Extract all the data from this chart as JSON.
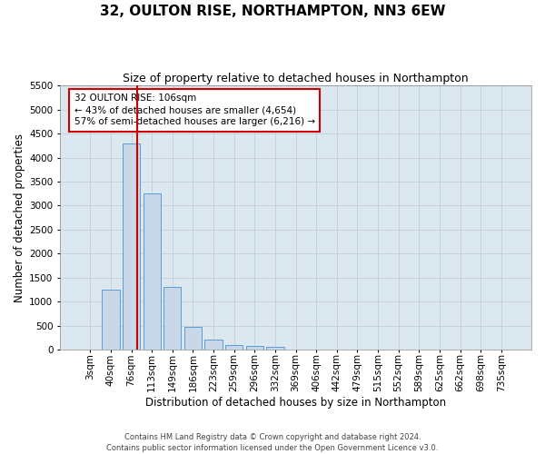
{
  "title": "32, OULTON RISE, NORTHAMPTON, NN3 6EW",
  "subtitle": "Size of property relative to detached houses in Northampton",
  "xlabel": "Distribution of detached houses by size in Northampton",
  "ylabel": "Number of detached properties",
  "footer_line1": "Contains HM Land Registry data © Crown copyright and database right 2024.",
  "footer_line2": "Contains public sector information licensed under the Open Government Licence v3.0.",
  "categories": [
    "3sqm",
    "40sqm",
    "76sqm",
    "113sqm",
    "149sqm",
    "186sqm",
    "223sqm",
    "259sqm",
    "296sqm",
    "332sqm",
    "369sqm",
    "406sqm",
    "442sqm",
    "479sqm",
    "515sqm",
    "552sqm",
    "589sqm",
    "625sqm",
    "662sqm",
    "698sqm",
    "735sqm"
  ],
  "bar_values": [
    0,
    1250,
    4300,
    3250,
    1300,
    480,
    220,
    100,
    75,
    60,
    0,
    0,
    0,
    0,
    0,
    0,
    0,
    0,
    0,
    0,
    0
  ],
  "bar_color": "#c8d8e8",
  "bar_edge_color": "#5b9bd5",
  "grid_color": "#c0c8d8",
  "bg_color": "#dce8f0",
  "red_line_color": "#cc0000",
  "annotation_text": "32 OULTON RISE: 106sqm\n← 43% of detached houses are smaller (4,654)\n57% of semi-detached houses are larger (6,216) →",
  "annotation_box_color": "#ffffff",
  "annotation_border_color": "#cc0000",
  "ylim": [
    0,
    5500
  ],
  "yticks": [
    0,
    500,
    1000,
    1500,
    2000,
    2500,
    3000,
    3500,
    4000,
    4500,
    5000,
    5500
  ],
  "title_fontsize": 11,
  "subtitle_fontsize": 9,
  "axis_label_fontsize": 8.5,
  "tick_fontsize": 7.5,
  "annotation_fontsize": 7.5
}
